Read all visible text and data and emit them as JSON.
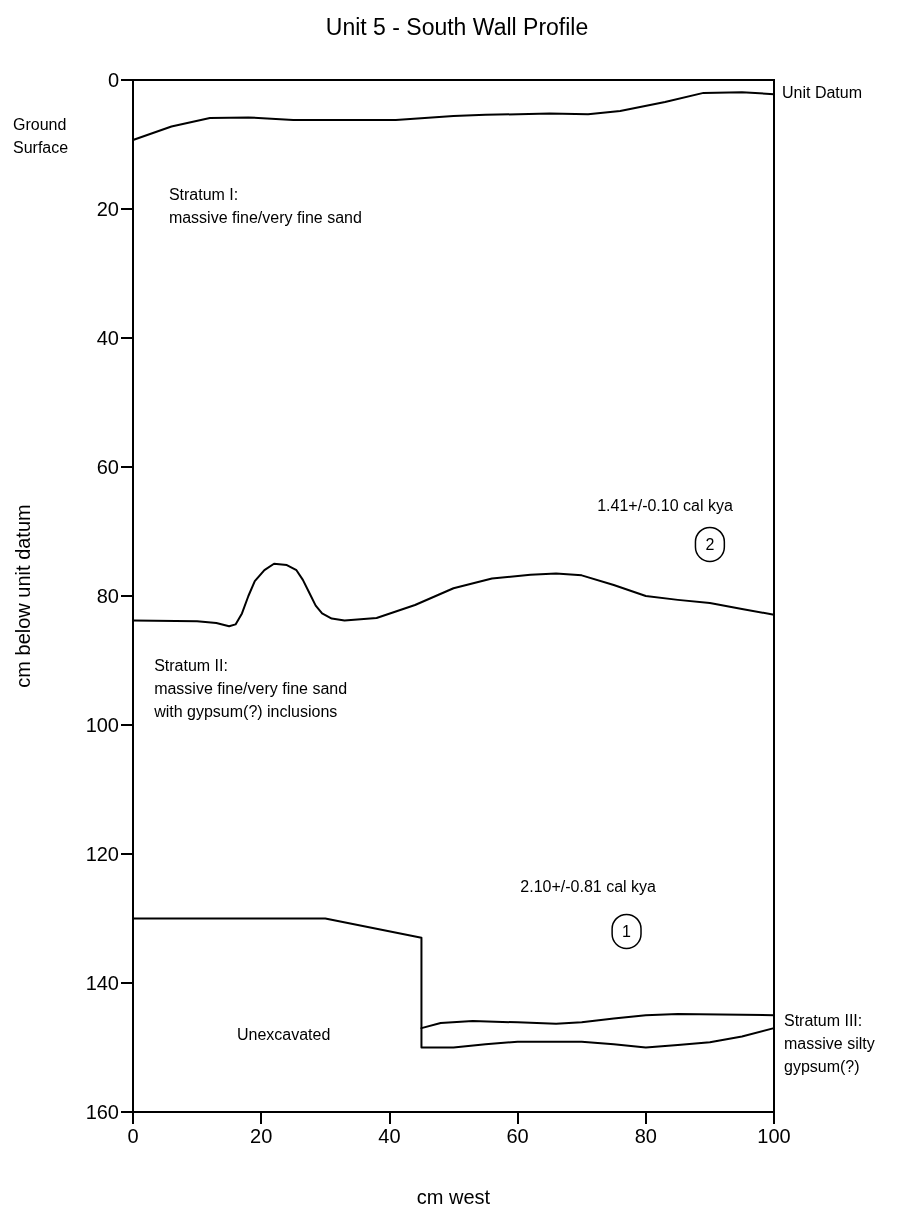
{
  "chart_data": {
    "type": "line",
    "title": "Unit 5 - South Wall Profile",
    "xlabel": "cm west",
    "ylabel": "cm below unit datum",
    "xlim": [
      0,
      100
    ],
    "xticks": [
      0,
      20,
      40,
      60,
      80,
      100
    ],
    "ylim": [
      160,
      0
    ],
    "yticks": [
      0,
      20,
      40,
      60,
      80,
      100,
      120,
      140,
      160
    ],
    "grid": false,
    "marker": "none",
    "line_style": "solid",
    "series": [
      {
        "color": "#000000",
        "x": [
          0,
          6,
          12,
          18,
          25,
          35,
          41,
          50,
          55,
          65,
          71,
          76,
          83,
          89,
          95,
          100
        ],
        "values": [
          9.3,
          7.2,
          5.9,
          5.8,
          6.2,
          6.2,
          6.2,
          5.6,
          5.4,
          5.2,
          5.3,
          4.8,
          3.4,
          2.0,
          1.9,
          2.2
        ]
      },
      {
        "color": "#000000",
        "x": [
          0,
          10,
          13,
          15,
          16,
          17,
          18,
          19,
          20.5,
          22,
          24,
          25.5,
          26.5,
          27.5,
          28.5,
          29.5,
          31,
          33,
          38,
          44,
          50,
          56,
          62,
          66,
          70,
          75,
          80,
          85,
          90,
          95,
          100
        ],
        "values": [
          83.8,
          83.9,
          84.2,
          84.7,
          84.4,
          82.7,
          80,
          77.7,
          76,
          75,
          75.2,
          76,
          77.5,
          79.5,
          81.5,
          82.7,
          83.5,
          83.8,
          83.4,
          81.4,
          78.8,
          77.3,
          76.7,
          76.5,
          76.8,
          78.3,
          80,
          80.6,
          81.1,
          82,
          82.9
        ]
      },
      {
        "color": "#000000",
        "x": [
          0,
          30,
          45,
          45,
          50,
          55,
          60,
          70,
          75,
          80,
          85,
          90,
          95,
          100
        ],
        "values": [
          130,
          130,
          133,
          150,
          150,
          149.5,
          149.1,
          149.1,
          149.5,
          150,
          149.6,
          149.2,
          148.3,
          147
        ]
      },
      {
        "color": "#000000",
        "x": [
          45,
          48,
          53,
          60,
          66,
          70,
          75,
          80,
          85,
          100
        ],
        "values": [
          147,
          146.2,
          145.9,
          146.1,
          146.3,
          146.1,
          145.5,
          145,
          144.8,
          145
        ]
      }
    ],
    "annotations": [
      "Ground Surface",
      "Unit Datum",
      "Stratum I:\nmassive fine/very fine sand",
      "1.41+/-0.10 cal kya",
      "2",
      "Stratum II:\nmassive fine/very fine sand\nwith gypsum(?) inclusions",
      "2.10+/-0.81 cal kya",
      "1",
      "Unexcavated",
      "Stratum III:\nmassive silty\ngypsum(?)"
    ]
  }
}
